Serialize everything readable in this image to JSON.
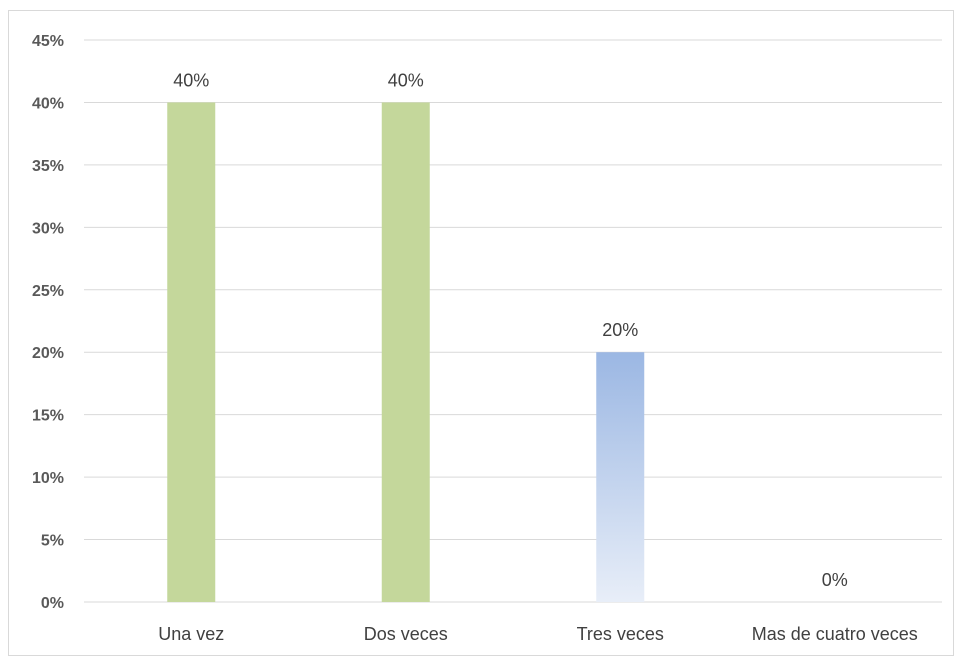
{
  "chart_data": {
    "type": "bar",
    "categories": [
      "Una vez",
      "Dos veces",
      "Tres veces",
      "Mas de cuatro veces"
    ],
    "values": [
      40,
      40,
      20,
      0
    ],
    "data_labels": [
      "40%",
      "40%",
      "20%",
      "0%"
    ],
    "ylim": [
      0,
      45
    ],
    "yticks": [
      0,
      5,
      10,
      15,
      20,
      25,
      30,
      35,
      40,
      45
    ],
    "ytick_labels": [
      "0%",
      "5%",
      "10%",
      "15%",
      "20%",
      "25%",
      "30%",
      "35%",
      "40%",
      "45%"
    ],
    "grid": true,
    "legend": "none",
    "bar_colors": [
      "#c4d79b",
      "#c4d79b",
      "#9bb7e3",
      "#c4d79b"
    ],
    "gradient_bar_index": 2,
    "gridline_color": "#d9d9d9"
  }
}
